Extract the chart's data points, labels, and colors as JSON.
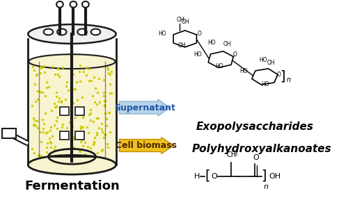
{
  "background_color": "#ffffff",
  "fermentation_label": "Fermentation",
  "arrow1_label": "Supernatant",
  "arrow2_label": "Cell biomass",
  "product1_label": "Exopolysaccharides",
  "product2_label": "Polyhydroxyalkanoates",
  "arrow1_fill": "#b8d4e8",
  "arrow1_edge": "#8ab0cc",
  "arrow2_fill": "#f0c020",
  "arrow2_edge": "#c09000",
  "arrow1_text_color": "#2255aa",
  "arrow2_text_color": "#4a2800",
  "bioreactor_color": "#1a1a1a",
  "liquid_color": "#f8f4d0",
  "dot_color": "#cccc00",
  "figsize": [
    5.0,
    3.11
  ],
  "dpi": 100
}
